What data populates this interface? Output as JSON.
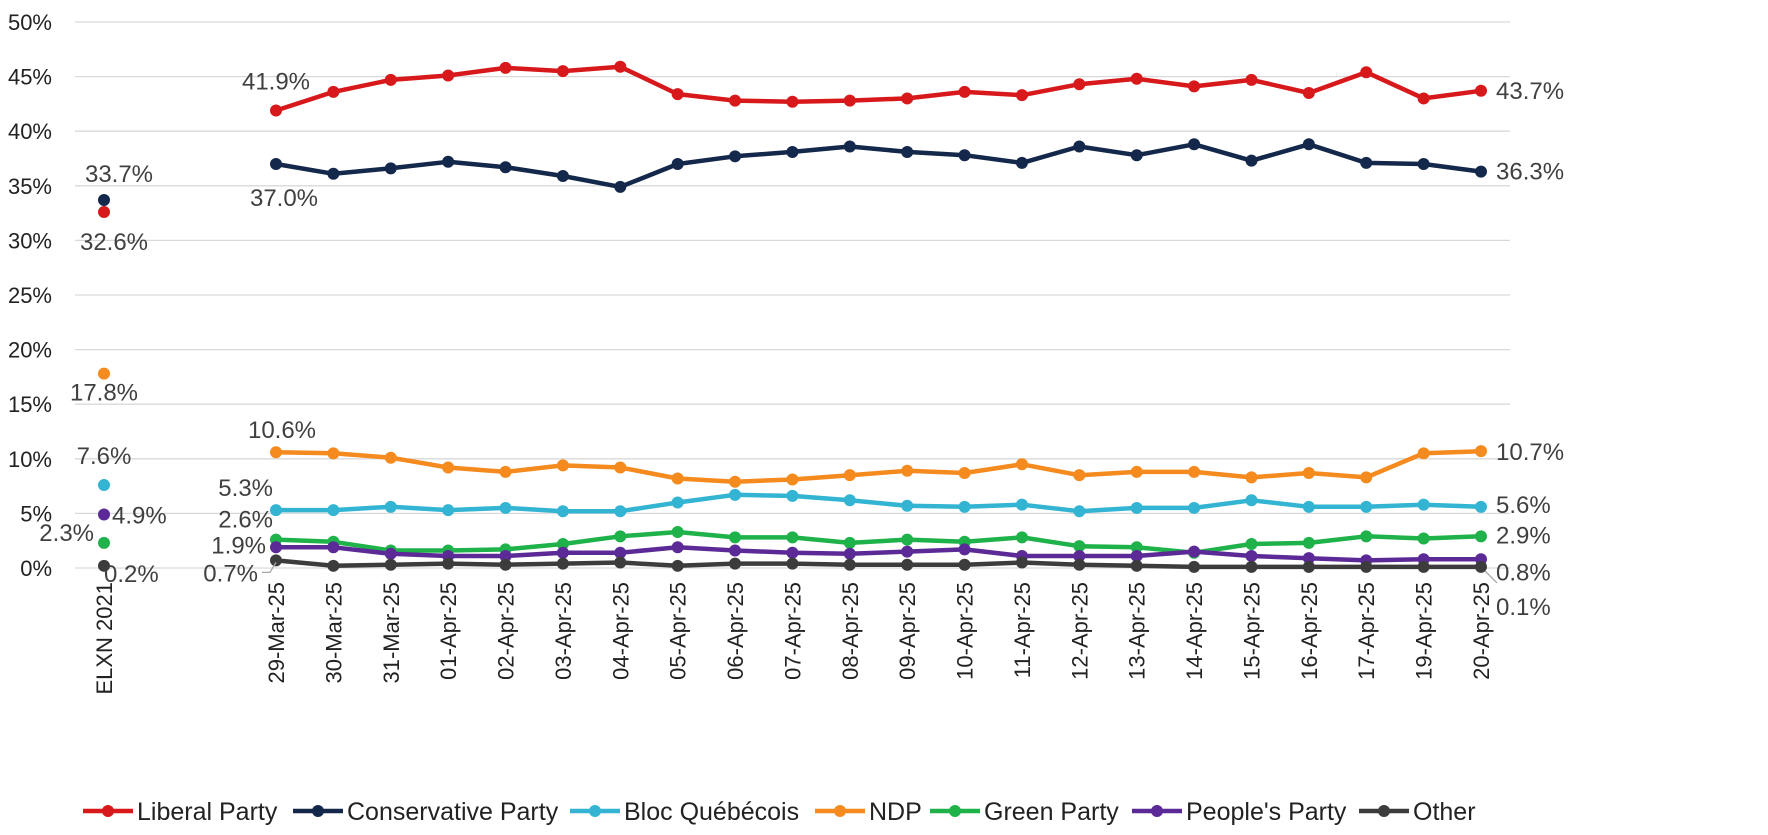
{
  "chart_data": {
    "type": "line",
    "title": "",
    "xlabel": "",
    "ylabel": "",
    "ylim": [
      0,
      50
    ],
    "y_ticks": [
      "0%",
      "5%",
      "10%",
      "15%",
      "20%",
      "25%",
      "30%",
      "35%",
      "40%",
      "45%",
      "50%"
    ],
    "grid": true,
    "legend_position": "bottom",
    "baseline": {
      "category": "ELXN 2021",
      "values": [
        {
          "series": "Liberal Party",
          "value": 32.6,
          "label": "32.6%"
        },
        {
          "series": "Conservative Party",
          "value": 33.7,
          "label": "33.7%"
        },
        {
          "series": "Bloc Québécois",
          "value": 7.6,
          "label": "7.6%"
        },
        {
          "series": "NDP",
          "value": 17.8,
          "label": "17.8%"
        },
        {
          "series": "Green Party",
          "value": 2.3,
          "label": "2.3%"
        },
        {
          "series": "People's Party",
          "value": 4.9,
          "label": "4.9%"
        },
        {
          "series": "Other",
          "value": 0.2,
          "label": "0.2%"
        }
      ]
    },
    "categories": [
      "29-Mar-25",
      "30-Mar-25",
      "31-Mar-25",
      "01-Apr-25",
      "02-Apr-25",
      "03-Apr-25",
      "04-Apr-25",
      "05-Apr-25",
      "06-Apr-25",
      "07-Apr-25",
      "08-Apr-25",
      "09-Apr-25",
      "10-Apr-25",
      "11-Apr-25",
      "12-Apr-25",
      "13-Apr-25",
      "14-Apr-25",
      "15-Apr-25",
      "16-Apr-25",
      "17-Apr-25",
      "19-Apr-25",
      "20-Apr-25"
    ],
    "series": [
      {
        "name": "Liberal Party",
        "color": "#d7191c",
        "values": [
          41.9,
          43.6,
          44.7,
          45.1,
          45.8,
          45.5,
          45.9,
          43.4,
          42.8,
          42.7,
          42.8,
          43.0,
          43.6,
          43.3,
          44.3,
          44.8,
          44.1,
          44.7,
          43.5,
          45.4,
          43.0,
          43.7
        ],
        "first_label": "41.9%",
        "last_label": "43.7%"
      },
      {
        "name": "Conservative Party",
        "color": "#14284b",
        "values": [
          37.0,
          36.1,
          36.6,
          37.2,
          36.7,
          35.9,
          34.9,
          37.0,
          37.7,
          38.1,
          38.6,
          38.1,
          37.8,
          37.1,
          38.6,
          37.8,
          38.8,
          37.3,
          38.8,
          37.1,
          37.0,
          36.3
        ],
        "first_label": "37.0%",
        "last_label": "36.3%"
      },
      {
        "name": "Bloc Québécois",
        "color": "#33b4d2",
        "values": [
          5.3,
          5.3,
          5.6,
          5.3,
          5.5,
          5.2,
          5.2,
          6.0,
          6.7,
          6.6,
          6.2,
          5.7,
          5.6,
          5.8,
          5.2,
          5.5,
          5.5,
          6.2,
          5.6,
          5.6,
          5.8,
          5.6
        ],
        "first_label": "5.3%",
        "last_label": "5.6%"
      },
      {
        "name": "NDP",
        "color": "#f58a1f",
        "values": [
          10.6,
          10.5,
          10.1,
          9.2,
          8.8,
          9.4,
          9.2,
          8.2,
          7.9,
          8.1,
          8.5,
          8.9,
          8.7,
          9.5,
          8.5,
          8.8,
          8.8,
          8.3,
          8.7,
          8.3,
          10.5,
          10.7
        ],
        "first_label": "10.6%",
        "last_label": "10.7%"
      },
      {
        "name": "Green Party",
        "color": "#1fb24a",
        "values": [
          2.6,
          2.4,
          1.6,
          1.6,
          1.7,
          2.2,
          2.9,
          3.3,
          2.8,
          2.8,
          2.3,
          2.6,
          2.4,
          2.8,
          2.0,
          1.9,
          1.4,
          2.2,
          2.3,
          2.9,
          2.7,
          2.9
        ],
        "first_label": "2.6%",
        "last_label": "2.9%"
      },
      {
        "name": "People's Party",
        "color": "#5b2a96",
        "values": [
          1.9,
          1.9,
          1.3,
          1.1,
          1.1,
          1.4,
          1.4,
          1.9,
          1.6,
          1.4,
          1.3,
          1.5,
          1.7,
          1.1,
          1.1,
          1.1,
          1.5,
          1.1,
          0.9,
          0.7,
          0.8,
          0.8
        ],
        "first_label": "1.9%",
        "last_label": "0.8%"
      },
      {
        "name": "Other",
        "color": "#3c3c3c",
        "values": [
          0.7,
          0.2,
          0.3,
          0.4,
          0.3,
          0.4,
          0.5,
          0.2,
          0.4,
          0.4,
          0.3,
          0.3,
          0.3,
          0.5,
          0.3,
          0.2,
          0.1,
          0.1,
          0.1,
          0.1,
          0.1,
          0.1
        ],
        "first_label": "0.7%",
        "last_label": "0.1%"
      }
    ]
  }
}
